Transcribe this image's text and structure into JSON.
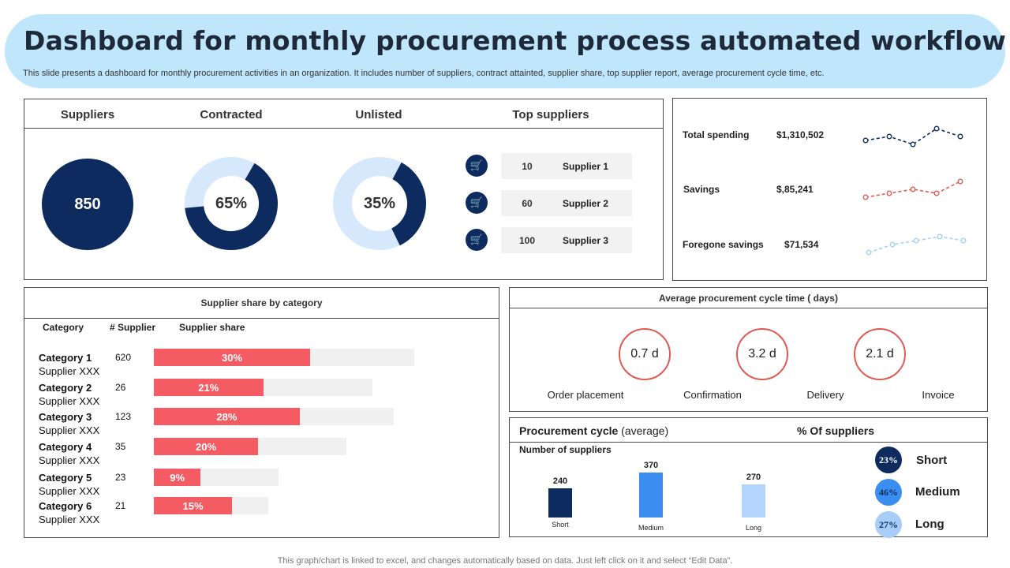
{
  "header": {
    "title": "Dashboard for monthly procurement process automated workflow",
    "subtitle": "This slide presents a dashboard for monthly procurement activities in an organization. It includes number of suppliers, contract attainted, supplier share, top supplier report, average procurement cycle time, etc."
  },
  "top_panel": {
    "headers": {
      "suppliers": "Suppliers",
      "contracted": "Contracted",
      "unlisted": "Unlisted",
      "top_suppliers": "Top suppliers"
    },
    "suppliers_value": "850",
    "contracted": {
      "label": "65%",
      "fraction": 0.65
    },
    "unlisted": {
      "label": "35%",
      "fraction": 0.35
    },
    "top_suppliers": [
      {
        "count": "10",
        "name": "Supplier 1"
      },
      {
        "count": "60",
        "name": "Supplier 2"
      },
      {
        "count": "100",
        "name": "Supplier 3"
      }
    ]
  },
  "spending": {
    "rows": [
      {
        "label": "Total spending",
        "value": "$1,310,502",
        "color": "#0d2b5e",
        "trend": [
          3,
          4,
          2,
          6,
          4
        ]
      },
      {
        "label": "Savings",
        "value": "$,85,241",
        "color": "#e05a55",
        "trend": [
          1,
          2,
          3,
          2,
          5
        ]
      },
      {
        "label": "Foregone savings",
        "value": "$71,534",
        "color": "#9fd4ee",
        "trend": [
          1,
          3,
          4,
          5,
          4
        ]
      }
    ]
  },
  "share": {
    "title": "Supplier share by category",
    "headers": {
      "category": "Category",
      "supplier_count": "# Supplier",
      "supplier_share": "Supplier share"
    },
    "rows": [
      {
        "name": "Category 1",
        "sub": "Supplier XXX",
        "count": "620",
        "share_label": "30%",
        "share": 30,
        "bg_ratio": 0.5
      },
      {
        "name": "Category 2",
        "sub": "Supplier XXX",
        "count": "26",
        "share_label": "21%",
        "share": 21,
        "bg_ratio": 0.42
      },
      {
        "name": "Category 3",
        "sub": "Supplier XXX",
        "count": "123",
        "share_label": "28%",
        "share": 28,
        "bg_ratio": 0.46
      },
      {
        "name": "Category 4",
        "sub": "Supplier XXX",
        "count": "35",
        "share_label": "20%",
        "share": 20,
        "bg_ratio": 0.37
      },
      {
        "name": "Category 5",
        "sub": "Supplier XXX",
        "count": "23",
        "share_label": "9%",
        "share": 9,
        "bg_ratio": 0.24
      },
      {
        "name": "Category 6",
        "sub": "Supplier XXX",
        "count": "21",
        "share_label": "15%",
        "share": 15,
        "bg_ratio": 0.22
      }
    ]
  },
  "cycle": {
    "title": "Average procurement  cycle time ( days)",
    "circles": [
      "0.7  d",
      "3.2  d",
      "2.1  d"
    ],
    "stages": [
      "Order placement",
      "Confirmation",
      "Delivery",
      "Invoice"
    ]
  },
  "procurement": {
    "title_bold": "Procurement cycle",
    "title_rest": " (average)",
    "pct_title": "% Of  suppliers",
    "num_label": "Number of suppliers",
    "bars": [
      {
        "cat": "Short",
        "value": 240,
        "label": "240",
        "color": "#0d2b5e"
      },
      {
        "cat": "Medium",
        "value": 370,
        "label": "370",
        "color": "#3b8ef0"
      },
      {
        "cat": "Long",
        "value": 270,
        "label": "270",
        "color": "#b3d5fb"
      }
    ],
    "pcts": [
      {
        "pct": "23%",
        "label": "Short",
        "bg": "#0d2b5e",
        "fg": "#ffffff"
      },
      {
        "pct": "46%",
        "label": "Medium",
        "bg": "#3b8ef0",
        "fg": "#0d2b5e"
      },
      {
        "pct": "27%",
        "label": "Long",
        "bg": "#a7cdf8",
        "fg": "#0d2b5e"
      }
    ]
  },
  "footer": "This graph/chart is linked to excel,  and changes automatically based on data. Just left click on it and select “Edit Data”."
}
